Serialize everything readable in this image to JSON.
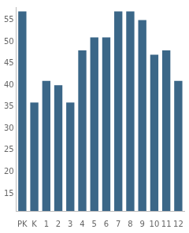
{
  "chart_data": {
    "type": "bar",
    "categories": [
      "PK",
      "K",
      "1",
      "2",
      "3",
      "4",
      "5",
      "6",
      "7",
      "8",
      "9",
      "10",
      "11",
      "12"
    ],
    "values": [
      57,
      36,
      41,
      40,
      36,
      48,
      51,
      51,
      57,
      57,
      55,
      47,
      48,
      41
    ],
    "color": "#3b6788",
    "ylim": [
      11,
      58
    ],
    "yticks": [
      15,
      20,
      25,
      30,
      35,
      40,
      45,
      50,
      55
    ],
    "grid": false
  }
}
